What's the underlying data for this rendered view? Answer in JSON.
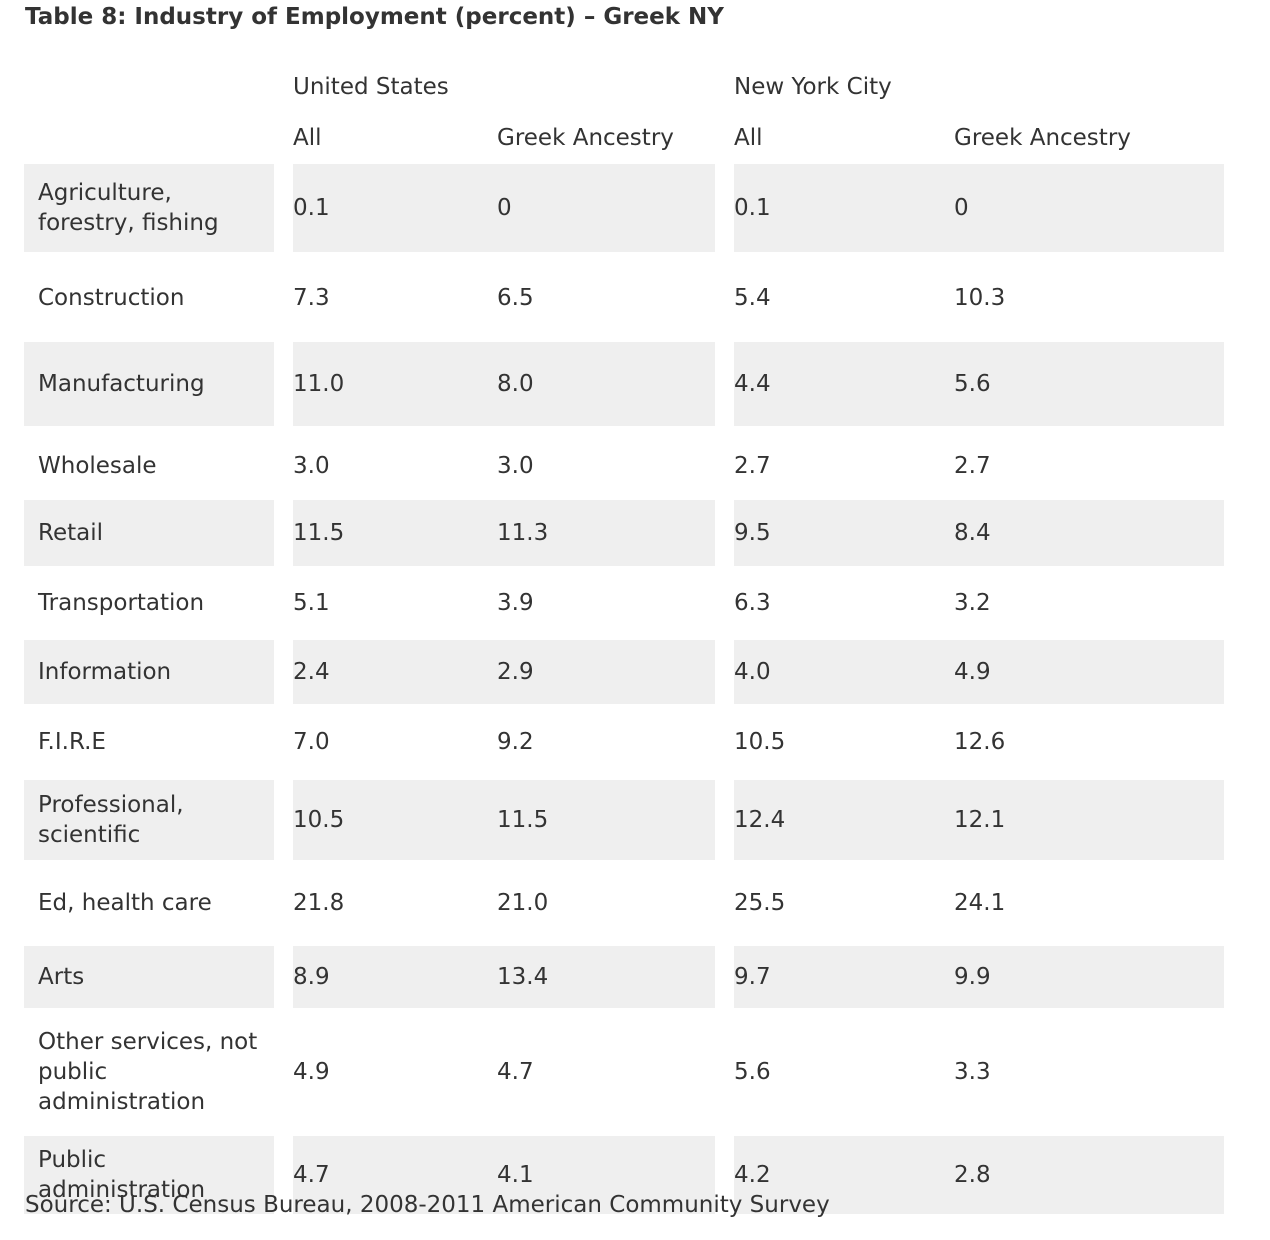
{
  "title": "Table 8: Industry of Employment (percent) – Greek NY",
  "groups": {
    "us": "United States",
    "nyc": "New York City"
  },
  "subheaders": {
    "all": "All",
    "greek": "Greek Ancestry"
  },
  "rows": [
    {
      "label": "Agriculture, forestry, fishing",
      "us_all": "0.1",
      "us_greek": "0",
      "nyc_all": "0.1",
      "nyc_greek": "0"
    },
    {
      "label": "Construction",
      "us_all": "7.3",
      "us_greek": "6.5",
      "nyc_all": "5.4",
      "nyc_greek": "10.3"
    },
    {
      "label": "Manufacturing",
      "us_all": "11.0",
      "us_greek": "8.0",
      "nyc_all": "4.4",
      "nyc_greek": "5.6"
    },
    {
      "label": "Wholesale",
      "us_all": "3.0",
      "us_greek": "3.0",
      "nyc_all": "2.7",
      "nyc_greek": "2.7"
    },
    {
      "label": "Retail",
      "us_all": "11.5",
      "us_greek": "11.3",
      "nyc_all": "9.5",
      "nyc_greek": "8.4"
    },
    {
      "label": "Transportation",
      "us_all": "5.1",
      "us_greek": "3.9",
      "nyc_all": "6.3",
      "nyc_greek": "3.2"
    },
    {
      "label": "Information",
      "us_all": "2.4",
      "us_greek": "2.9",
      "nyc_all": "4.0",
      "nyc_greek": "4.9"
    },
    {
      "label": "F.I.R.E",
      "us_all": "7.0",
      "us_greek": "9.2",
      "nyc_all": "10.5",
      "nyc_greek": "12.6"
    },
    {
      "label": "Professional, scientific",
      "us_all": "10.5",
      "us_greek": "11.5",
      "nyc_all": "12.4",
      "nyc_greek": "12.1"
    },
    {
      "label": "Ed, health care",
      "us_all": "21.8",
      "us_greek": "21.0",
      "nyc_all": "25.5",
      "nyc_greek": "24.1"
    },
    {
      "label": "Arts",
      "us_all": "8.9",
      "us_greek": "13.4",
      "nyc_all": "9.7",
      "nyc_greek": "9.9"
    },
    {
      "label": "Other services, not public administration",
      "us_all": "4.9",
      "us_greek": "4.7",
      "nyc_all": "5.6",
      "nyc_greek": "3.3"
    },
    {
      "label": "Public administration",
      "us_all": "4.7",
      "us_greek": "4.1",
      "nyc_all": "4.2",
      "nyc_greek": "2.8"
    }
  ],
  "source": "Source: U.S. Census Bureau, 2008-2011 American Community Survey"
}
